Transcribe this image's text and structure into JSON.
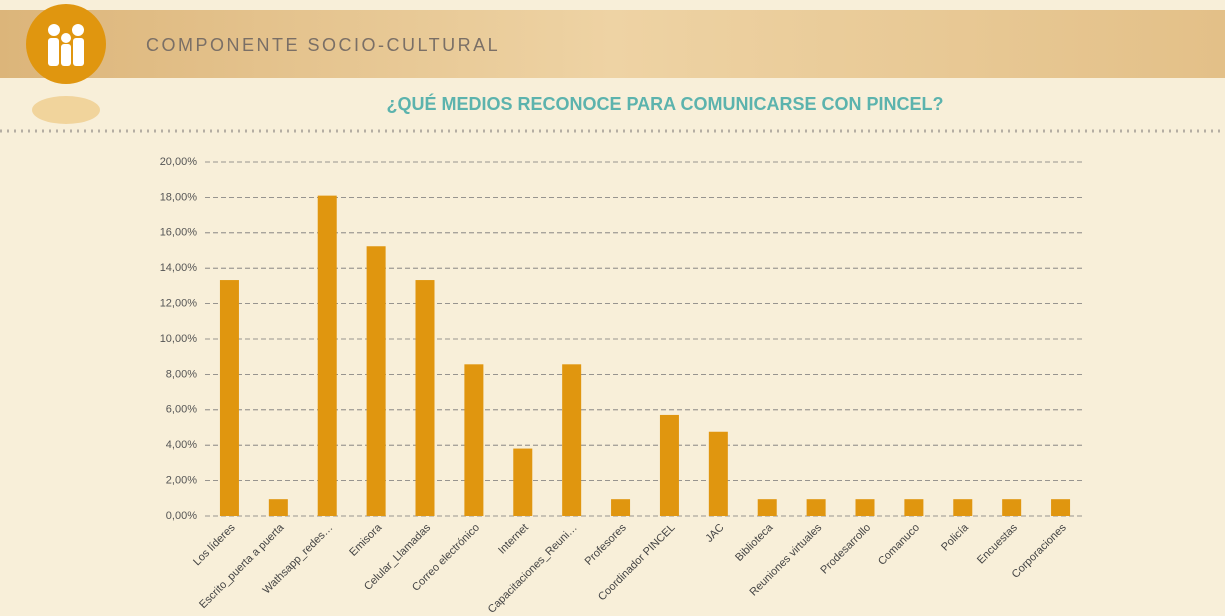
{
  "header": {
    "section": "COMPONENTE SOCIO-CULTURAL"
  },
  "chart_data": {
    "type": "bar",
    "title": "¿QUÉ MEDIOS RECONOCE PARA COMUNICARSE CON PINCEL?",
    "categories": [
      "Los líderes",
      "Escrito_puerta a puerta",
      "Wathsapp_redes…",
      "Emisora",
      "Celular_Llamadas",
      "Correo electrónico",
      "Internet",
      "Capacitaciones_Reuni…",
      "Profesores",
      "Coordinador PINCEL",
      "JAC",
      "Biblioteca",
      "Reuniones virtuales",
      "Prodesarrollo",
      "Comanuco",
      "Policía",
      "Encuestas",
      "Corporaciones"
    ],
    "values": [
      13.33,
      0.95,
      18.1,
      15.24,
      13.33,
      8.57,
      3.81,
      8.57,
      0.95,
      5.71,
      4.76,
      0.95,
      0.95,
      0.95,
      0.95,
      0.95,
      0.95,
      0.95
    ],
    "color": "#e0960f",
    "ylim": [
      0,
      20
    ],
    "yticks": [
      {
        "value": 0,
        "label": "0,00%"
      },
      {
        "value": 2,
        "label": "2,00%"
      },
      {
        "value": 4,
        "label": "4,00%"
      },
      {
        "value": 6,
        "label": "6,00%"
      },
      {
        "value": 8,
        "label": "8,00%"
      },
      {
        "value": 10,
        "label": "10,00%"
      },
      {
        "value": 12,
        "label": "12,00%"
      },
      {
        "value": 14,
        "label": "14,00%"
      },
      {
        "value": 16,
        "label": "16,00%"
      },
      {
        "value": 18,
        "label": "18,00%"
      },
      {
        "value": 20,
        "label": "20,00%"
      }
    ],
    "grid": true
  }
}
